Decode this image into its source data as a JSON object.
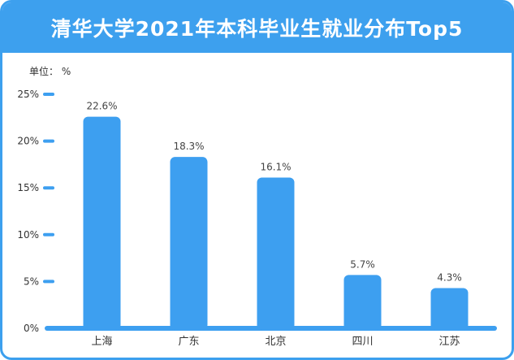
{
  "chart_data": {
    "type": "bar",
    "title": "清华大学2021年本科毕业生就业分布Top5",
    "unit_label": "单位：  %",
    "categories": [
      "上海",
      "广东",
      "北京",
      "四川",
      "江苏"
    ],
    "values": [
      22.6,
      18.3,
      16.1,
      5.7,
      4.3
    ],
    "data_labels": [
      "22.6%",
      "18.3%",
      "16.1%",
      "5.7%",
      "4.3%"
    ],
    "y_ticks": [
      0,
      5,
      10,
      15,
      20,
      25
    ],
    "y_tick_labels": [
      "0%",
      "5%",
      "10%",
      "15%",
      "20%",
      "25%"
    ],
    "ylim": [
      0,
      25
    ],
    "xlabel": "",
    "ylabel": "",
    "grid": false,
    "legend": "none",
    "colors": {
      "bar": "#3d9ff0",
      "axis": "#3d9ff0",
      "header": "#3da0ee"
    }
  }
}
